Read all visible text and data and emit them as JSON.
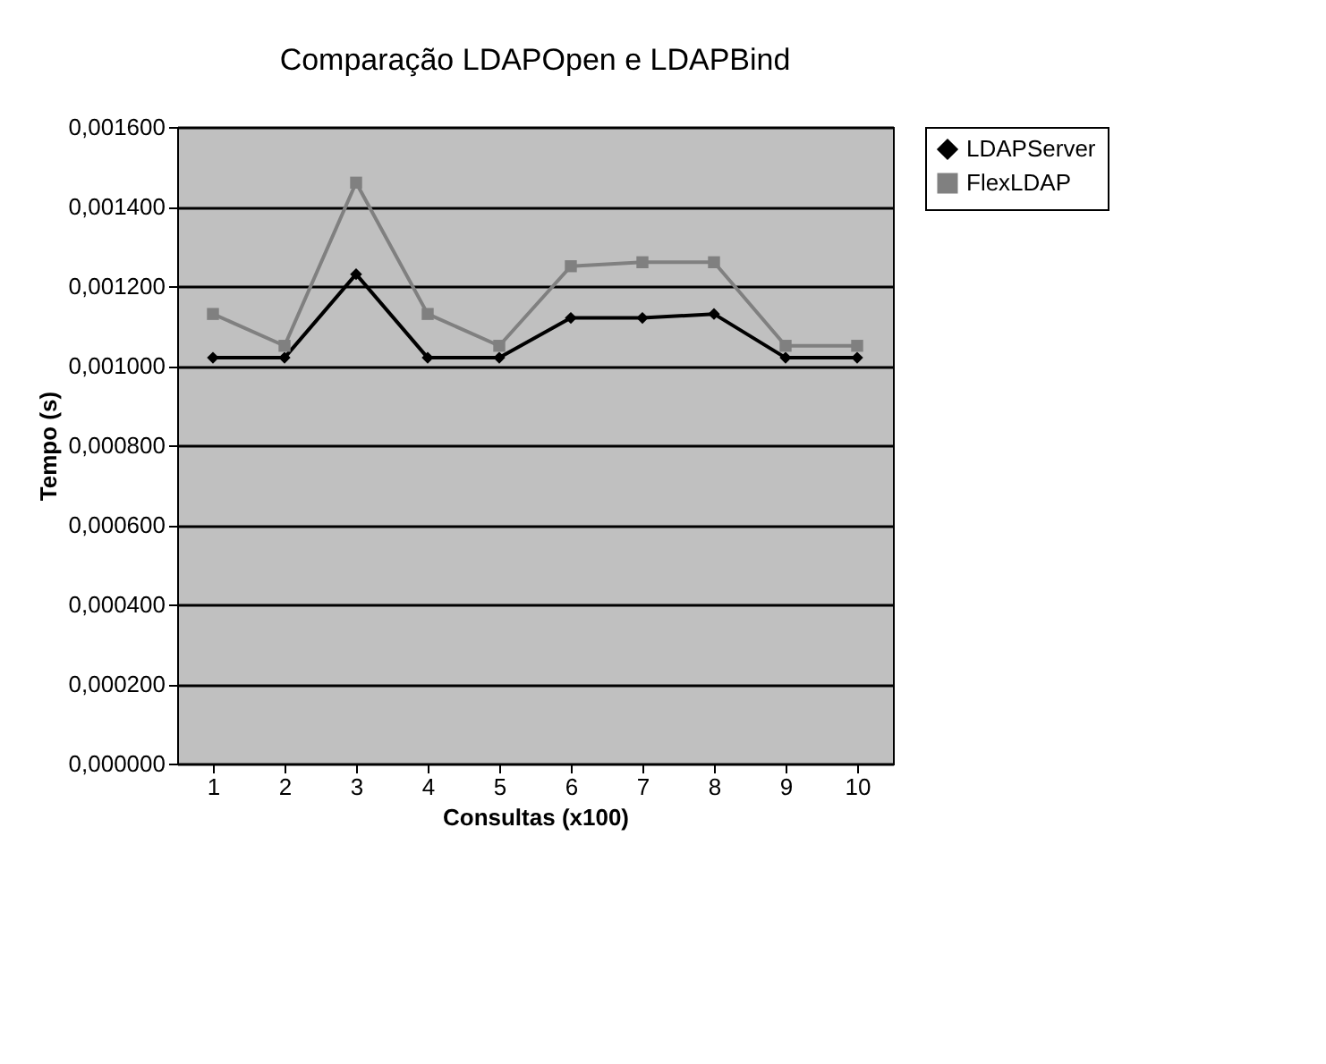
{
  "chart_data": {
    "type": "line",
    "title": "Comparação LDAPOpen e LDAPBind",
    "xlabel": "Consultas (x100)",
    "ylabel": "Tempo (s)",
    "categories": [
      "1",
      "2",
      "3",
      "4",
      "5",
      "6",
      "7",
      "8",
      "9",
      "10"
    ],
    "series": [
      {
        "name": "LDAPServer",
        "color": "#000000",
        "marker": "diamond",
        "values": [
          0.00102,
          0.00102,
          0.00123,
          0.00102,
          0.00102,
          0.00112,
          0.00112,
          0.00113,
          0.00102,
          0.00102
        ]
      },
      {
        "name": "FlexLDAP",
        "color": "#808080",
        "marker": "square",
        "values": [
          0.00113,
          0.00105,
          0.00146,
          0.00113,
          0.00105,
          0.00125,
          0.00126,
          0.00126,
          0.00105,
          0.00105
        ]
      }
    ],
    "ylim": [
      0,
      0.0016
    ],
    "yticks": [
      {
        "value": 0,
        "label": "0,000000"
      },
      {
        "value": 0.0002,
        "label": "0,000200"
      },
      {
        "value": 0.0004,
        "label": "0,000400"
      },
      {
        "value": 0.0006,
        "label": "0,000600"
      },
      {
        "value": 0.0008,
        "label": "0,000800"
      },
      {
        "value": 0.001,
        "label": "0,001000"
      },
      {
        "value": 0.0012,
        "label": "0,001200"
      },
      {
        "value": 0.0014,
        "label": "0,001400"
      },
      {
        "value": 0.0016,
        "label": "0,001600"
      }
    ],
    "grid": "y",
    "legend": "right",
    "line_style": "solid"
  }
}
